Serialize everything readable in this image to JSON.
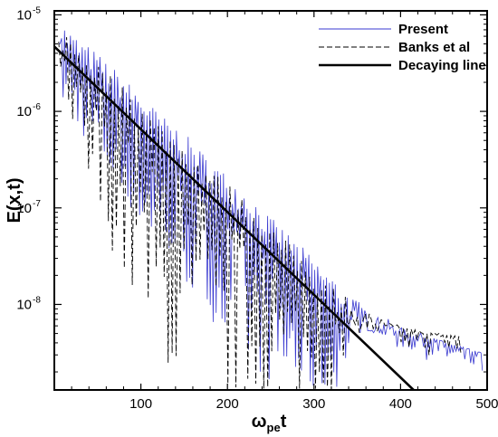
{
  "chart_data": {
    "type": "line",
    "title": "",
    "xlabel": {
      "main": "ω",
      "sub": "pe",
      "suffix": "t"
    },
    "ylabel": "E(x,t)",
    "xlim": [
      0,
      500
    ],
    "ylim": [
      1.3e-09,
      1.1e-05
    ],
    "yscale": "log",
    "x_ticks": [
      100,
      200,
      300,
      400,
      500
    ],
    "x_tick_labels": [
      "100",
      "200",
      "300",
      "400",
      "500"
    ],
    "y_ticks": [
      {
        "value": 1e-08,
        "base": "10",
        "exp": "-8"
      },
      {
        "value": 1e-07,
        "base": "10",
        "exp": "-7"
      },
      {
        "value": 1e-06,
        "base": "10",
        "exp": "-6"
      },
      {
        "value": 1e-05,
        "base": "10",
        "exp": "-5"
      }
    ],
    "grid": false,
    "legend_position": "top-right",
    "series": [
      {
        "name": "Present",
        "color": "#3a3ad0",
        "style": "solid",
        "description": "oscillating envelope",
        "x": [
          5,
          25,
          50,
          75,
          100,
          125,
          150,
          175,
          200,
          225,
          250,
          275,
          300,
          325,
          350,
          375,
          400,
          425,
          450,
          475,
          495
        ],
        "y_peak": [
          9e-06,
          6e-06,
          4e-06,
          2.5e-06,
          1.5e-06,
          9e-07,
          6e-07,
          3.5e-07,
          2.2e-07,
          1.4e-07,
          8e-08,
          5e-08,
          3e-08,
          1.8e-08,
          1.1e-08,
          8e-09,
          6e-09,
          5e-09,
          4.2e-09,
          3.6e-09,
          3.2e-09
        ],
        "y_trough": [
          1.5e-06,
          7e-07,
          3.5e-07,
          1.5e-07,
          7e-08,
          3.5e-08,
          1.8e-08,
          8e-09,
          4.5e-09,
          2.5e-09,
          1.6e-09,
          1.4e-09,
          1.3e-09,
          1.3e-09,
          5e-09,
          5.5e-09,
          5e-09,
          4.5e-09,
          4e-09,
          3.4e-09,
          3e-09
        ]
      },
      {
        "name": "Banks et al",
        "color": "#000000",
        "style": "dashed",
        "description": "oscillating envelope",
        "x": [
          5,
          25,
          50,
          75,
          100,
          125,
          150,
          175,
          200,
          225,
          250,
          275,
          300,
          325,
          350,
          375,
          400,
          425,
          450,
          470
        ],
        "y_peak": [
          8e-06,
          5e-06,
          3.2e-06,
          2e-06,
          1.2e-06,
          7e-07,
          4.5e-07,
          2.8e-07,
          1.8e-07,
          1.1e-07,
          6.5e-08,
          4e-08,
          2.4e-08,
          1.5e-08,
          1e-08,
          7.5e-09,
          6e-09,
          5.5e-09,
          5e-09,
          4.8e-09
        ],
        "y_trough": [
          1e-06,
          3e-07,
          8e-08,
          2.5e-08,
          8e-09,
          3e-09,
          1.3e-09,
          1.3e-09,
          1.3e-09,
          1.3e-09,
          1.3e-09,
          1.3e-09,
          1.3e-09,
          1.3e-09,
          5e-09,
          6e-09,
          5.5e-09,
          5e-09,
          4.8e-09,
          4.6e-09
        ]
      },
      {
        "name": "Decaying line",
        "color": "#000000",
        "style": "solid-thick",
        "x": [
          0,
          415
        ],
        "y": [
          4.7e-06,
          1.3e-09
        ]
      }
    ]
  }
}
